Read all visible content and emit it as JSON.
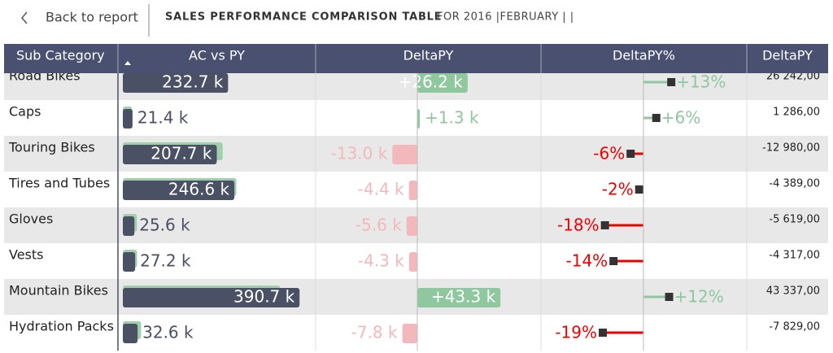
{
  "header": {
    "back": "Back to report",
    "title": "SALES PERFORMANCE COMPARISON TABLE",
    "subtitle": "FOR 2016 |FEBRUARY | |"
  },
  "table": {
    "columns": [
      "Sub Category",
      "AC vs PY",
      "DeltaPY",
      "DeltaPY%",
      "DeltaPY"
    ],
    "rows": [
      {
        "name": "Road Bikes",
        "ac": 232.7,
        "ac_label": "232.7 k",
        "py": 206.5,
        "delta": 26.2,
        "delta_label": "+26.2 k",
        "pct": 13,
        "pct_label": "+13%",
        "delta_exact": "26 242,00"
      },
      {
        "name": "Caps",
        "ac": 21.4,
        "ac_label": "21.4 k",
        "py": 20.1,
        "delta": 1.3,
        "delta_label": "+1.3 k",
        "pct": 6,
        "pct_label": "+6%",
        "delta_exact": "1 286,00"
      },
      {
        "name": "Touring Bikes",
        "ac": 207.7,
        "ac_label": "207.7 k",
        "py": 220.7,
        "delta": -13.0,
        "delta_label": "-13.0 k",
        "pct": -6,
        "pct_label": "-6%",
        "delta_exact": "-12 980,00"
      },
      {
        "name": "Tires and Tubes",
        "ac": 246.6,
        "ac_label": "246.6 k",
        "py": 251.0,
        "delta": -4.4,
        "delta_label": "-4.4 k",
        "pct": -2,
        "pct_label": "-2%",
        "delta_exact": "-4 389,00"
      },
      {
        "name": "Gloves",
        "ac": 25.6,
        "ac_label": "25.6 k",
        "py": 31.2,
        "delta": -5.6,
        "delta_label": "-5.6 k",
        "pct": -18,
        "pct_label": "-18%",
        "delta_exact": "-5 619,00"
      },
      {
        "name": "Vests",
        "ac": 27.2,
        "ac_label": "27.2 k",
        "py": 31.5,
        "delta": -4.3,
        "delta_label": "-4.3 k",
        "pct": -14,
        "pct_label": "-14%",
        "delta_exact": "-4 317,00"
      },
      {
        "name": "Mountain Bikes",
        "ac": 390.7,
        "ac_label": "390.7 k",
        "py": 347.4,
        "delta": 43.3,
        "delta_label": "+43.3 k",
        "pct": 12,
        "pct_label": "+12%",
        "delta_exact": "43 337,00"
      },
      {
        "name": "Hydration Packs",
        "ac": 32.6,
        "ac_label": "32.6 k",
        "py": 40.4,
        "delta": -7.8,
        "delta_label": "-7.8 k",
        "pct": -19,
        "pct_label": "-19%",
        "delta_exact": "-7 829,00"
      }
    ]
  }
}
